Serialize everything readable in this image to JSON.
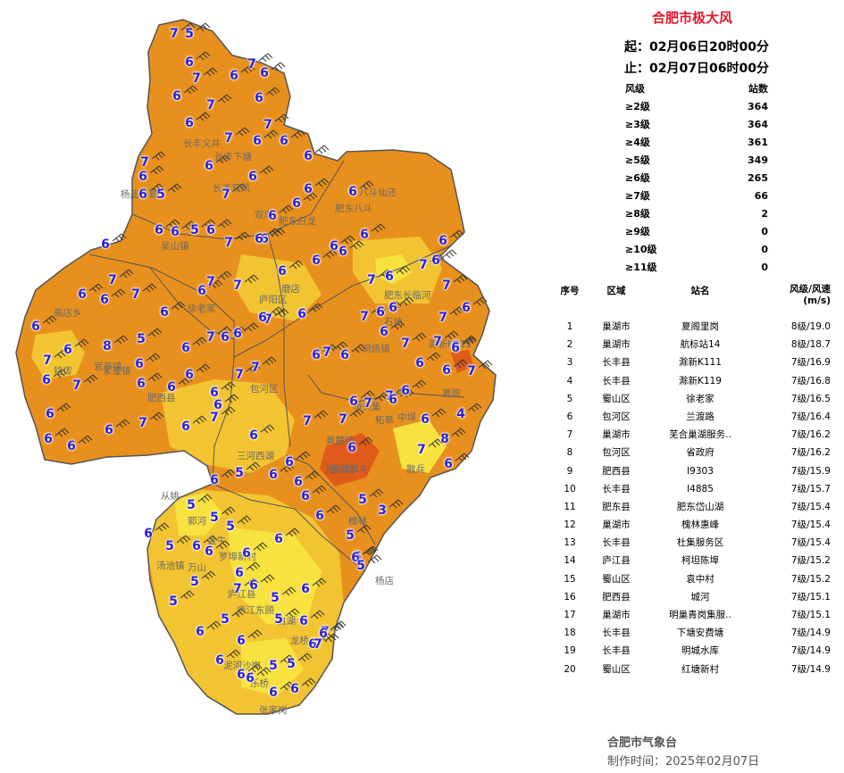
{
  "title": "合肥市极大风",
  "period": {
    "start": "起：02月06日20时00分",
    "end": "止：02月07日06时00分"
  },
  "level_table": {
    "header_level": "风级",
    "header_count": "站数",
    "rows": [
      {
        "level": "≥2级",
        "count": "364"
      },
      {
        "level": "≥3级",
        "count": "364"
      },
      {
        "level": "≥4级",
        "count": "361"
      },
      {
        "level": "≥5级",
        "count": "349"
      },
      {
        "level": "≥6级",
        "count": "265"
      },
      {
        "level": "≥7级",
        "count": "66"
      },
      {
        "level": "≥8级",
        "count": "2"
      },
      {
        "level": "≥9级",
        "count": "0"
      },
      {
        "level": "≥10级",
        "count": "0"
      },
      {
        "level": "≥11级",
        "count": "0"
      }
    ]
  },
  "ranking": {
    "headers": {
      "no": "序号",
      "area": "区域",
      "name": "站名",
      "value": "风级/风速",
      "unit": "(m/s)"
    },
    "rows": [
      {
        "no": "1",
        "area": "巢湖市",
        "name": "夏阁里岗",
        "value": "8级/19.0"
      },
      {
        "no": "2",
        "area": "巢湖市",
        "name": "航标站14",
        "value": "8级/18.7"
      },
      {
        "no": "3",
        "area": "长丰县",
        "name": "滁新K111",
        "value": "7级/16.9"
      },
      {
        "no": "4",
        "area": "长丰县",
        "name": "滁新K119",
        "value": "7级/16.8"
      },
      {
        "no": "5",
        "area": "蜀山区",
        "name": "徐老家",
        "value": "7级/16.5"
      },
      {
        "no": "6",
        "area": "包河区",
        "name": "兰渡路",
        "value": "7级/16.4"
      },
      {
        "no": "7",
        "area": "巢湖市",
        "name": "芜合巢湖服务..",
        "value": "7级/16.2"
      },
      {
        "no": "8",
        "area": "包河区",
        "name": "省政府",
        "value": "7级/16.2"
      },
      {
        "no": "9",
        "area": "肥西县",
        "name": "I9303",
        "value": "7级/15.9"
      },
      {
        "no": "10",
        "area": "长丰县",
        "name": "I4885",
        "value": "7级/15.7"
      },
      {
        "no": "11",
        "area": "肥东县",
        "name": "肥东岱山湖",
        "value": "7级/15.4"
      },
      {
        "no": "12",
        "area": "巢湖市",
        "name": "槐林惠峰",
        "value": "7级/15.4"
      },
      {
        "no": "13",
        "area": "长丰县",
        "name": "杜集服务区",
        "value": "7级/15.4"
      },
      {
        "no": "14",
        "area": "庐江县",
        "name": "柯坦陈埠",
        "value": "7级/15.2"
      },
      {
        "no": "15",
        "area": "蜀山区",
        "name": "袁中村",
        "value": "7级/15.2"
      },
      {
        "no": "16",
        "area": "肥西县",
        "name": "城河",
        "value": "7级/15.1"
      },
      {
        "no": "17",
        "area": "巢湖市",
        "name": "明巢青岗集服..",
        "value": "7级/15.1"
      },
      {
        "no": "18",
        "area": "长丰县",
        "name": "下塘安费塘",
        "value": "7级/14.9"
      },
      {
        "no": "19",
        "area": "长丰县",
        "name": "明城水库",
        "value": "7级/14.9"
      },
      {
        "no": "20",
        "area": "蜀山区",
        "name": "红塘新村",
        "value": "7级/14.9"
      }
    ]
  },
  "footer": {
    "agency": "合肥市气象台",
    "made_label": "制作时间：",
    "made_time": "2025年02月07日"
  },
  "colors": {
    "title": "#e0182a",
    "level_number": "#2b1fd6",
    "zone_level6": "#e8901e",
    "zone_level5": "#f2c431",
    "zone_level4_5": "#f7e23f",
    "zone_level8": "#e05a19",
    "district_border": "#555555"
  },
  "map": {
    "station_labels": [
      "长丰义井",
      "杨庙马郢",
      "吴山镇",
      "双墩",
      "肥东八斗",
      "八斗仙还",
      "肥东白龙",
      "长丰双凤",
      "庐阳区",
      "磨店",
      "包河区",
      "肥西县",
      "紫蓬镇",
      "官亭镇",
      "铭传",
      "三河西湖",
      "巢湖市",
      "黄麓镇",
      "柘皋",
      "郭河",
      "金牛",
      "罗埠新村",
      "汤池镇",
      "万山",
      "庐江县",
      "白湖",
      "龙桥",
      "泥河沙岗",
      "乐桥",
      "张家岗",
      "从姚",
      "杨店",
      "高店乡",
      "烔炀镇",
      "散兵",
      "庐江东顾",
      "长丰下塘",
      "肥东长临河",
      "石塘",
      "桥头集",
      "中垾",
      "槐林",
      "徐老家",
      "滁新K111",
      "航标站14",
      "夏阁"
    ],
    "wind_levels": [
      "7",
      "5",
      "6",
      "7",
      "6",
      "7",
      "6",
      "7",
      "6",
      "6",
      "6",
      "7",
      "7",
      "6",
      "6",
      "6",
      "6",
      "7",
      "5",
      "6",
      "6",
      "6",
      "6",
      "6",
      "6",
      "7",
      "6",
      "6",
      "5",
      "6",
      "6",
      "7",
      "6",
      "6",
      "7",
      "6",
      "6",
      "7",
      "6",
      "5",
      "6",
      "7",
      "6",
      "7",
      "7",
      "6",
      "6",
      "6",
      "6",
      "6",
      "6",
      "7",
      "6",
      "7",
      "6",
      "6",
      "7",
      "6",
      "7",
      "7",
      "6",
      "6",
      "6",
      "7",
      "6",
      "7",
      "6",
      "6",
      "6",
      "7",
      "6",
      "6",
      "7",
      "6",
      "7",
      "8",
      "6",
      "6",
      "6",
      "6",
      "6",
      "7",
      "7",
      "6",
      "6",
      "7",
      "6",
      "7",
      "6",
      "6",
      "6",
      "6",
      "7",
      "6",
      "7",
      "6",
      "6",
      "6",
      "6",
      "6",
      "7",
      "7",
      "6",
      "7",
      "8",
      "4",
      "6",
      "6",
      "7",
      "7",
      "6",
      "6",
      "6",
      "6",
      "6",
      "6",
      "6",
      "6",
      "6",
      "5",
      "5",
      "5",
      "5",
      "6",
      "6",
      "6",
      "6",
      "7",
      "6",
      "5",
      "5",
      "6",
      "6",
      "7",
      "7",
      "6",
      "5",
      "5",
      "5",
      "6",
      "6",
      "6",
      "6",
      "6",
      "6",
      "6",
      "5",
      "5",
      "5",
      "3",
      "5",
      "5",
      "6",
      "5",
      "6",
      "5",
      "6",
      "6",
      "6"
    ]
  }
}
